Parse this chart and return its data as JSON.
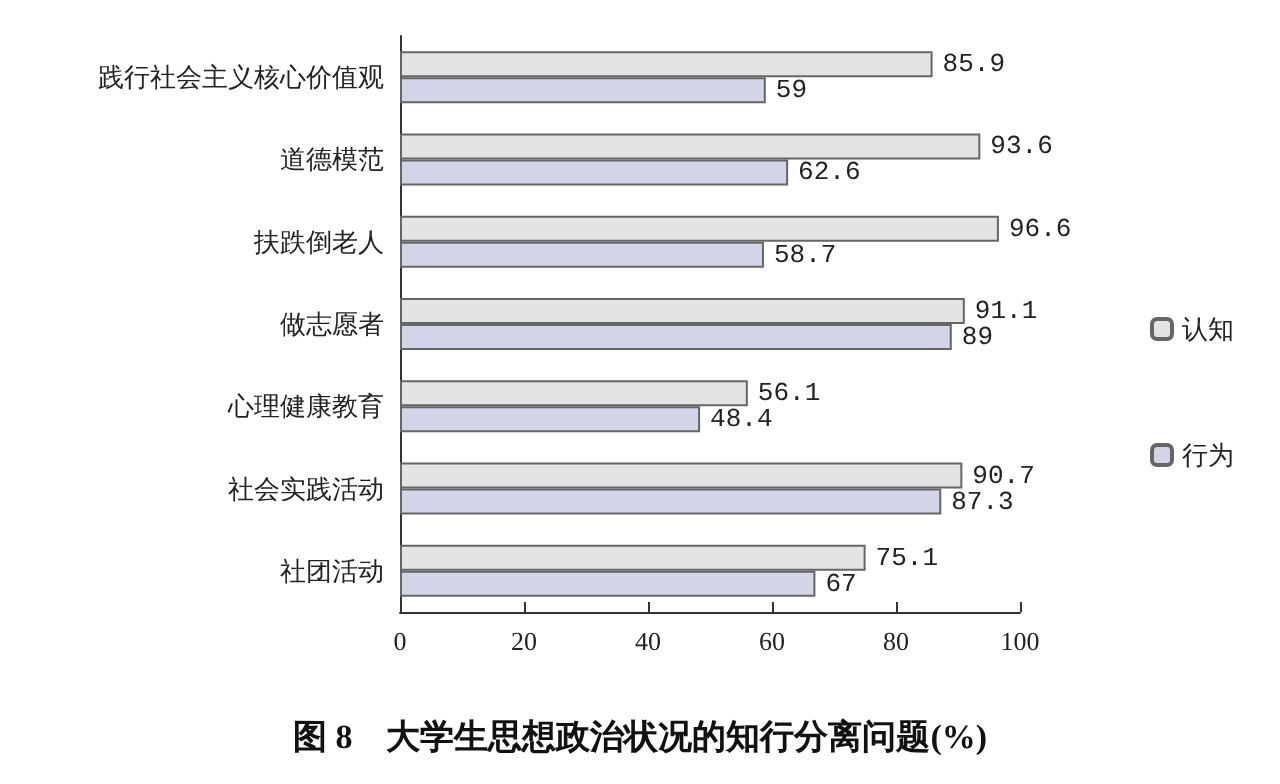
{
  "chart_data": {
    "type": "bar",
    "orientation": "horizontal",
    "title": "图 8　大学生思想政治状况的知行分离问题(%)",
    "categories": [
      "践行社会主义核心价值观",
      "道德模范",
      "扶跌倒老人",
      "做志愿者",
      "心理健康教育",
      "社会实践活动",
      "社团活动"
    ],
    "series": [
      {
        "name": "认知",
        "color": "#e4e4e4",
        "values": [
          85.9,
          93.6,
          96.6,
          91.1,
          56.1,
          90.7,
          75.1
        ]
      },
      {
        "name": "行为",
        "color": "#d4d4e8",
        "values": [
          59,
          62.6,
          58.7,
          89,
          48.4,
          87.3,
          67
        ]
      }
    ],
    "xlim": [
      0,
      100
    ],
    "xticks": [
      0,
      20,
      40,
      60,
      80,
      100
    ],
    "grid": false,
    "legend": "right",
    "data_labels": true
  }
}
